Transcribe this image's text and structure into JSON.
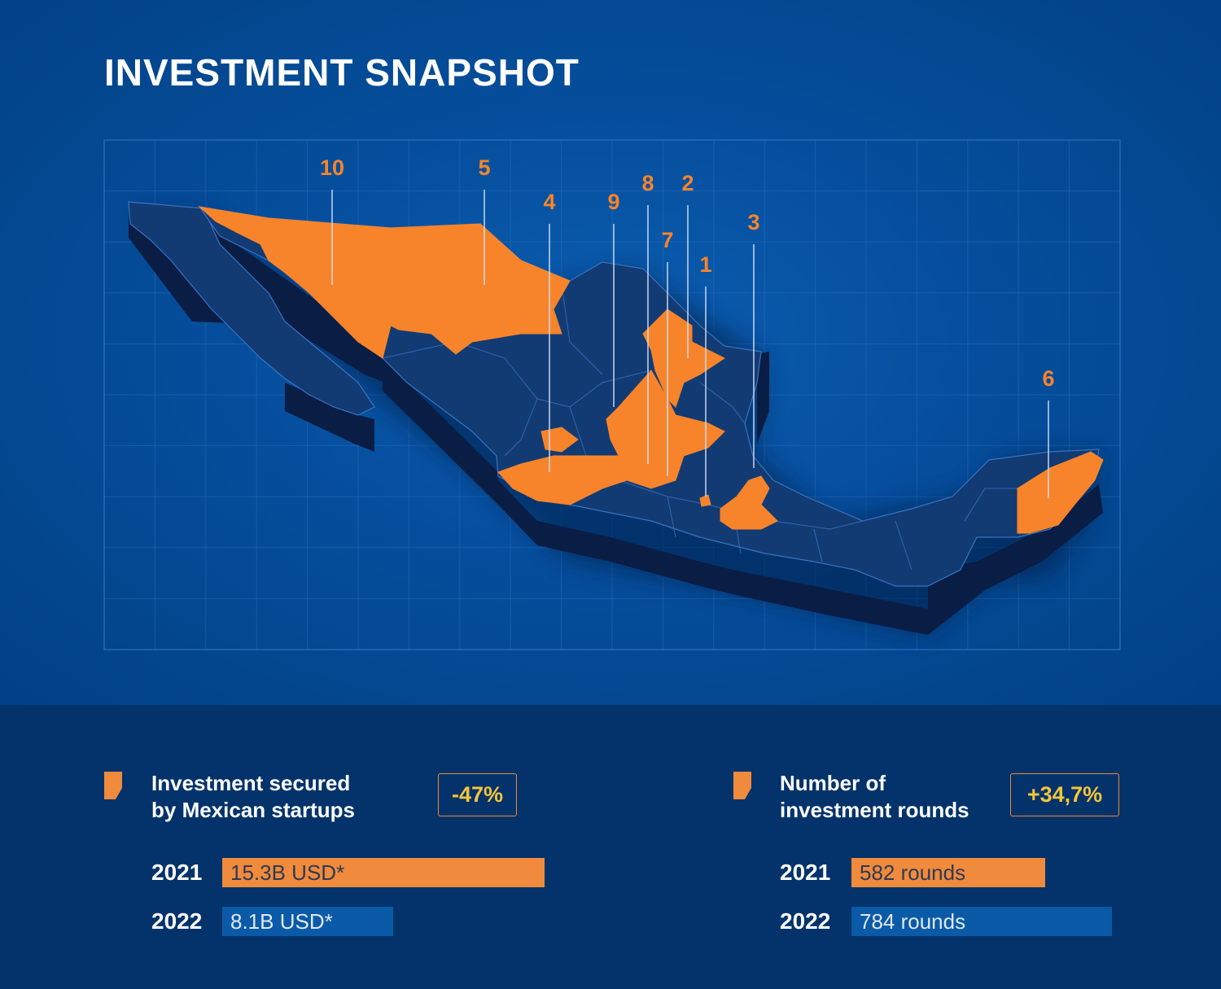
{
  "title": "INVESTMENT SNAPSHOT",
  "colors": {
    "highlight": "#f7842a",
    "land": "#123b74",
    "land_side": "#0a1f48",
    "grid": "#2f72c4",
    "label": "#f7842a",
    "badge_text": "#f5c53a"
  },
  "map": {
    "highlighted_region_labels": [
      "10",
      "5",
      "4",
      "9",
      "8",
      "2",
      "7",
      "1",
      "3",
      "6"
    ]
  },
  "metrics": [
    {
      "label_line1": "Investment secured",
      "label_line2": "by Mexican startups",
      "change": "-47%",
      "rows": [
        {
          "year": "2021",
          "label": "15.3B USD*",
          "value": 15.3
        },
        {
          "year": "2022",
          "label": "8.1B USD*",
          "value": 8.1
        }
      ]
    },
    {
      "label_line1": "Number of",
      "label_line2": "investment rounds",
      "change": "+34,7%",
      "rows": [
        {
          "year": "2021",
          "label": "582 rounds",
          "value": 582
        },
        {
          "year": "2022",
          "label": "784 rounds",
          "value": 784
        }
      ]
    }
  ]
}
